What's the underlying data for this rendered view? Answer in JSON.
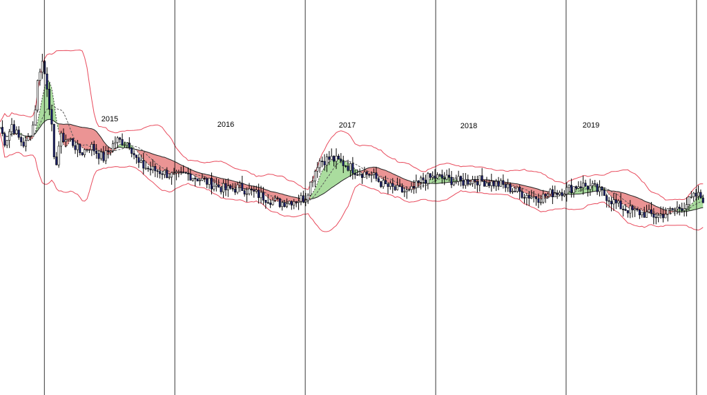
{
  "chart_data": {
    "type": "line",
    "title": "",
    "xlabel": "",
    "ylabel": "",
    "year_labels": [
      "2015",
      "2016",
      "2017",
      "2018",
      "2019"
    ],
    "x_range": [
      2014.66,
      2020.08
    ],
    "y_range": [
      0,
      100
    ],
    "grid": false,
    "legend": "none",
    "colors": {
      "band": "#e8485a",
      "candle_up": "#ffffff",
      "candle_down": "#1a1f6e",
      "bull_fill": "#7cc96a",
      "bear_fill": "#e05a5a",
      "slow_ma": "#222222",
      "divider": "#000000"
    },
    "price_path": [
      [
        2014.66,
        62
      ],
      [
        2014.7,
        56
      ],
      [
        2014.75,
        63
      ],
      [
        2014.8,
        58
      ],
      [
        2014.85,
        55
      ],
      [
        2014.88,
        58
      ],
      [
        2014.92,
        64
      ],
      [
        2014.95,
        80
      ],
      [
        2014.98,
        88
      ],
      [
        2015.02,
        78
      ],
      [
        2015.05,
        66
      ],
      [
        2015.08,
        45
      ],
      [
        2015.12,
        58
      ],
      [
        2015.2,
        57
      ],
      [
        2015.28,
        52
      ],
      [
        2015.35,
        55
      ],
      [
        2015.45,
        50
      ],
      [
        2015.55,
        57
      ],
      [
        2015.65,
        56
      ],
      [
        2015.72,
        48
      ],
      [
        2015.8,
        46
      ],
      [
        2015.9,
        45
      ],
      [
        2016.0,
        43
      ],
      [
        2016.1,
        44
      ],
      [
        2016.2,
        42
      ],
      [
        2016.3,
        40
      ],
      [
        2016.4,
        38
      ],
      [
        2016.5,
        39
      ],
      [
        2016.6,
        37
      ],
      [
        2016.7,
        35
      ],
      [
        2016.8,
        33
      ],
      [
        2016.9,
        34
      ],
      [
        2017.0,
        35
      ],
      [
        2017.1,
        49
      ],
      [
        2017.2,
        50
      ],
      [
        2017.3,
        48
      ],
      [
        2017.4,
        45
      ],
      [
        2017.5,
        44
      ],
      [
        2017.6,
        40
      ],
      [
        2017.7,
        38
      ],
      [
        2017.8,
        37
      ],
      [
        2017.9,
        42
      ],
      [
        2018.0,
        43
      ],
      [
        2018.1,
        42
      ],
      [
        2018.2,
        41
      ],
      [
        2018.3,
        42
      ],
      [
        2018.4,
        41
      ],
      [
        2018.5,
        40
      ],
      [
        2018.6,
        38
      ],
      [
        2018.7,
        36
      ],
      [
        2018.8,
        35
      ],
      [
        2018.9,
        37
      ],
      [
        2019.0,
        38
      ],
      [
        2019.1,
        40
      ],
      [
        2019.2,
        39
      ],
      [
        2019.3,
        36
      ],
      [
        2019.4,
        32
      ],
      [
        2019.5,
        30
      ],
      [
        2019.6,
        29
      ],
      [
        2019.7,
        28
      ],
      [
        2019.8,
        30
      ],
      [
        2019.9,
        32
      ],
      [
        2020.0,
        36
      ],
      [
        2020.08,
        34
      ]
    ]
  }
}
